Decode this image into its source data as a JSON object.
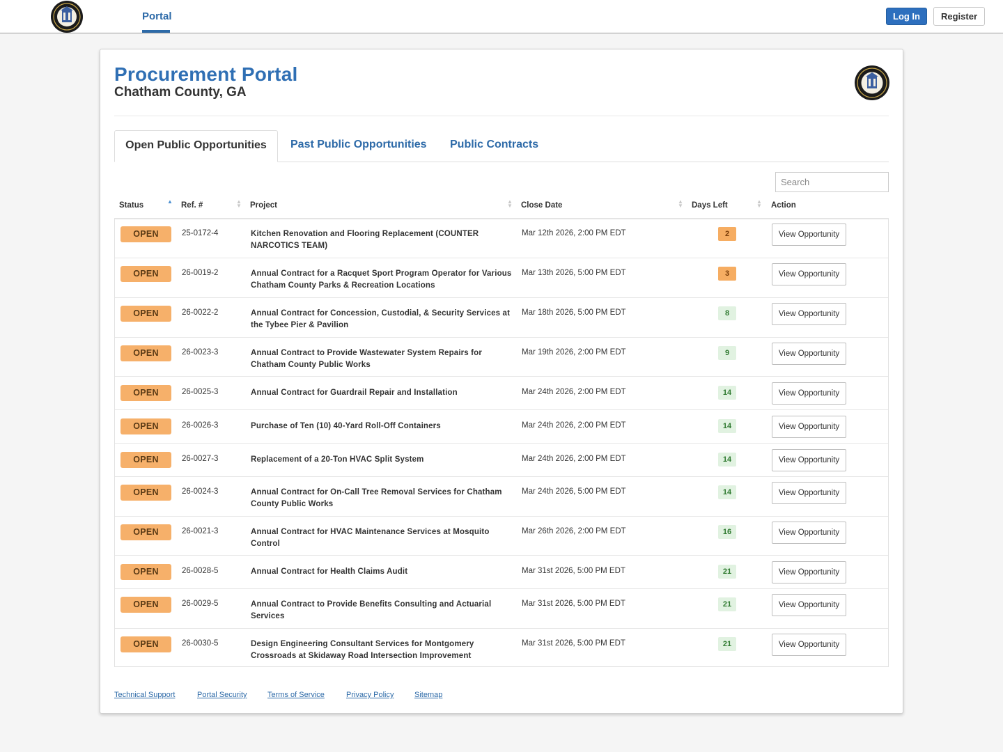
{
  "nav": {
    "tab_label": "Portal",
    "login_label": "Log In",
    "register_label": "Register"
  },
  "header": {
    "title": "Procurement Portal",
    "subtitle": "Chatham County, GA"
  },
  "tabs": [
    {
      "label": "Open Public Opportunities",
      "active": true
    },
    {
      "label": "Past Public Opportunities",
      "active": false
    },
    {
      "label": "Public Contracts",
      "active": false
    }
  ],
  "search": {
    "placeholder": "Search"
  },
  "table": {
    "columns": [
      "Status",
      "Ref. #",
      "Project",
      "Close Date",
      "Days Left",
      "Action"
    ],
    "rows": [
      {
        "status": "OPEN",
        "ref": "25-0172-4",
        "project": "Kitchen Renovation and Flooring Replacement (COUNTER NARCOTICS TEAM)",
        "close": "Mar 12th 2026, 2:00 PM EDT",
        "days": "2",
        "action": "View Opportunity"
      },
      {
        "status": "OPEN",
        "ref": "26-0019-2",
        "project": "Annual Contract for a Racquet Sport Program Operator for Various Chatham County Parks & Recreation Locations",
        "close": "Mar 13th 2026, 5:00 PM EDT",
        "days": "3",
        "action": "View Opportunity"
      },
      {
        "status": "OPEN",
        "ref": "26-0022-2",
        "project": "Annual Contract for Concession, Custodial, & Security Services at the Tybee Pier & Pavilion",
        "close": "Mar 18th 2026, 5:00 PM EDT",
        "days": "8",
        "action": "View Opportunity"
      },
      {
        "status": "OPEN",
        "ref": "26-0023-3",
        "project": "Annual Contract to Provide Wastewater System Repairs for Chatham County Public Works",
        "close": "Mar 19th 2026, 2:00 PM EDT",
        "days": "9",
        "action": "View Opportunity"
      },
      {
        "status": "OPEN",
        "ref": "26-0025-3",
        "project": "Annual Contract for Guardrail Repair and Installation",
        "close": "Mar 24th 2026, 2:00 PM EDT",
        "days": "14",
        "action": "View Opportunity"
      },
      {
        "status": "OPEN",
        "ref": "26-0026-3",
        "project": "Purchase of Ten (10) 40-Yard Roll-Off Containers",
        "close": "Mar 24th 2026, 2:00 PM EDT",
        "days": "14",
        "action": "View Opportunity"
      },
      {
        "status": "OPEN",
        "ref": "26-0027-3",
        "project": "Replacement of a 20-Ton HVAC Split System",
        "close": "Mar 24th 2026, 2:00 PM EDT",
        "days": "14",
        "action": "View Opportunity"
      },
      {
        "status": "OPEN",
        "ref": "26-0024-3",
        "project": "Annual Contract for On-Call Tree Removal Services for Chatham County Public Works",
        "close": "Mar 24th 2026, 5:00 PM EDT",
        "days": "14",
        "action": "View Opportunity"
      },
      {
        "status": "OPEN",
        "ref": "26-0021-3",
        "project": "Annual Contract for HVAC Maintenance Services at Mosquito Control",
        "close": "Mar 26th 2026, 2:00 PM EDT",
        "days": "16",
        "action": "View Opportunity"
      },
      {
        "status": "OPEN",
        "ref": "26-0028-5",
        "project": "Annual Contract for Health Claims Audit",
        "close": "Mar 31st 2026, 5:00 PM EDT",
        "days": "21",
        "action": "View Opportunity"
      },
      {
        "status": "OPEN",
        "ref": "26-0029-5",
        "project": "Annual Contract to Provide Benefits Consulting and Actuarial Services",
        "close": "Mar 31st 2026, 5:00 PM EDT",
        "days": "21",
        "action": "View Opportunity"
      },
      {
        "status": "OPEN",
        "ref": "26-0030-5",
        "project": "Design Engineering Consultant Services for Montgomery Crossroads at Skidaway Road Intersection Improvement",
        "close": "Mar 31st 2026, 5:00 PM EDT",
        "days": "21",
        "action": "View Opportunity"
      }
    ]
  },
  "footer": {
    "links": [
      "Technical Support",
      "Portal Security",
      "Terms of Service",
      "Privacy Policy",
      "Sitemap"
    ]
  },
  "colors": {
    "brand_blue": "#2f6fb4",
    "open_badge": "#f6b06a",
    "days_warning": "#f6ad62",
    "days_ok": "#e1f2e1"
  },
  "icons": {
    "seal": "chatham-county-seal-icon",
    "sort": "sort-arrows-icon"
  }
}
